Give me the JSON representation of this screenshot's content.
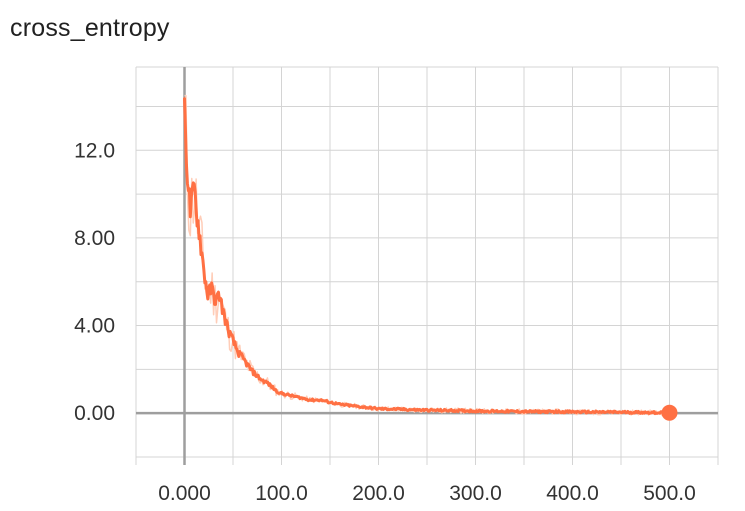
{
  "chart_data": {
    "type": "line",
    "title": "cross_entropy",
    "xlabel": "",
    "ylabel": "",
    "xlim": [
      -50,
      550
    ],
    "ylim": [
      -2.0,
      15.8
    ],
    "x_ticks": [
      0,
      100,
      200,
      300,
      400,
      500
    ],
    "x_tick_labels": [
      "0.000",
      "100.0",
      "200.0",
      "300.0",
      "400.0",
      "500.0"
    ],
    "y_ticks": [
      0,
      4,
      8,
      12
    ],
    "y_tick_labels": [
      "0.00",
      "4.00",
      "8.00",
      "12.0"
    ],
    "grid": true,
    "legend": "none",
    "colors": {
      "line": "#ff7043",
      "raw": "#ffcdb8",
      "grid": "#d4d4d4",
      "zero_axis": "#9e9e9e"
    },
    "series": [
      {
        "x": [
          0,
          3,
          6,
          10,
          13,
          16,
          20,
          24,
          28,
          32,
          36,
          40,
          45,
          50,
          55,
          60,
          65,
          70,
          75,
          80,
          85,
          90,
          95,
          100,
          110,
          120,
          130,
          140,
          150,
          160,
          170,
          180,
          190,
          200,
          220,
          240,
          260,
          280,
          300,
          320,
          340,
          360,
          380,
          400,
          420,
          440,
          460,
          480,
          500
        ],
        "y": [
          13.6,
          11.0,
          9.2,
          10.3,
          9.0,
          8.0,
          6.5,
          5.4,
          5.7,
          5.1,
          5.4,
          4.6,
          3.8,
          3.3,
          2.8,
          2.5,
          2.2,
          1.9,
          1.7,
          1.5,
          1.4,
          1.2,
          1.0,
          0.9,
          0.8,
          0.7,
          0.6,
          0.6,
          0.5,
          0.4,
          0.35,
          0.3,
          0.25,
          0.2,
          0.18,
          0.15,
          0.13,
          0.12,
          0.1,
          0.09,
          0.08,
          0.07,
          0.07,
          0.06,
          0.05,
          0.05,
          0.04,
          0.03,
          0.02
        ]
      }
    ]
  }
}
